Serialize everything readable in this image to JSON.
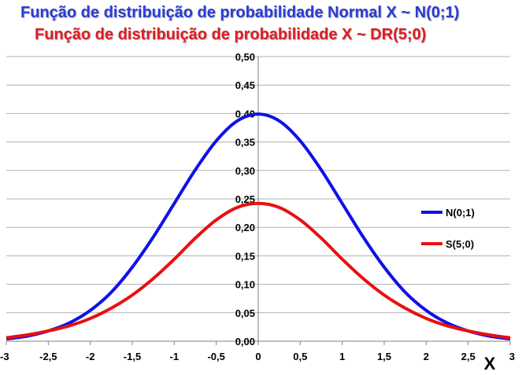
{
  "chart_data": {
    "type": "line",
    "title": "Função de distribuição de probabilidade Normal X ~ N(0;1)",
    "subtitle": "Função de distribuição de probabilidade X ~ DR(5;0)",
    "xlabel": "X",
    "ylabel": "",
    "xlim": [
      -3,
      3
    ],
    "ylim": [
      0,
      0.5
    ],
    "x_ticks": [
      "-3",
      "-2,5",
      "-2",
      "-1,5",
      "-1",
      "-0,5",
      "0",
      "0,5",
      "1",
      "1,5",
      "2",
      "2,5",
      "3"
    ],
    "y_ticks": [
      "0,00",
      "0,05",
      "0,10",
      "0,15",
      "0,20",
      "0,25",
      "0,30",
      "0,35",
      "0,40",
      "0,45",
      "0,50"
    ],
    "grid": true,
    "legend_position": "right",
    "series": [
      {
        "name": "N(0;1)",
        "color": "#1010e8",
        "x": [
          -3,
          -2.75,
          -2.5,
          -2.25,
          -2,
          -1.75,
          -1.5,
          -1.25,
          -1,
          -0.75,
          -0.5,
          -0.25,
          0,
          0.25,
          0.5,
          0.75,
          1,
          1.25,
          1.5,
          1.75,
          2,
          2.25,
          2.5,
          2.75,
          3
        ],
        "values": [
          0.004,
          0.009,
          0.018,
          0.032,
          0.054,
          0.086,
          0.13,
          0.183,
          0.242,
          0.301,
          0.352,
          0.387,
          0.399,
          0.387,
          0.352,
          0.301,
          0.242,
          0.183,
          0.13,
          0.086,
          0.054,
          0.032,
          0.018,
          0.009,
          0.004
        ]
      },
      {
        "name": "S(5;0)",
        "color": "#e81010",
        "x": [
          -3,
          -2.75,
          -2.5,
          -2.25,
          -2,
          -1.75,
          -1.5,
          -1.25,
          -1,
          -0.75,
          -0.5,
          -0.25,
          0,
          0.25,
          0.5,
          0.75,
          1,
          1.25,
          1.5,
          1.75,
          2,
          2.25,
          2.5,
          2.75,
          3
        ],
        "values": [
          0.006,
          0.011,
          0.018,
          0.027,
          0.04,
          0.058,
          0.081,
          0.11,
          0.144,
          0.181,
          0.213,
          0.235,
          0.242,
          0.235,
          0.213,
          0.181,
          0.144,
          0.11,
          0.081,
          0.058,
          0.04,
          0.027,
          0.018,
          0.011,
          0.006
        ]
      }
    ]
  }
}
